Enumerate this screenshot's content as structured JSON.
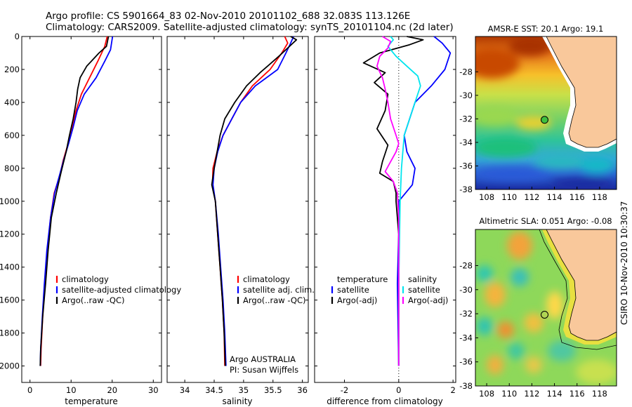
{
  "header": {
    "title_line1": "Argo profile: CS 5901664_83 02-Nov-2010 20101102_688 32.083S 113.126E",
    "title_line2": "Climatology: CARS2009. Satellite-adjusted climatology: synTS_20101104.nc (2d later)"
  },
  "side_label": "CSIRO 10-Nov-2010 10:30:37",
  "colors": {
    "red": "#ff0000",
    "blue": "#0000ff",
    "black": "#000000",
    "cyan": "#00e5ee",
    "magenta": "#ff00ff",
    "land": "#f9c89b"
  },
  "chart_data": [
    {
      "type": "line",
      "id": "temperature",
      "xlabel": "temperature",
      "xlim": [
        -2,
        32
      ],
      "ylim": [
        0,
        2100
      ],
      "y_reversed": true,
      "xticks": [
        "0",
        "10",
        "20",
        "30"
      ],
      "xtick_values": [
        0,
        10,
        20,
        30
      ],
      "yticks": [
        "0",
        "200",
        "400",
        "600",
        "800",
        "1000",
        "1200",
        "1400",
        "1600",
        "1800",
        "2000"
      ],
      "ytick_values": [
        0,
        200,
        400,
        600,
        800,
        1000,
        1200,
        1400,
        1600,
        1800,
        2000
      ],
      "series": [
        {
          "name": "climatology",
          "color": "#ff0000",
          "points": [
            [
              18.8,
              0
            ],
            [
              18.2,
              60
            ],
            [
              16.5,
              150
            ],
            [
              14.5,
              250
            ],
            [
              12.5,
              350
            ],
            [
              11.2,
              450
            ],
            [
              10.3,
              550
            ],
            [
              9.3,
              650
            ],
            [
              8.1,
              750
            ],
            [
              7.2,
              850
            ],
            [
              5.9,
              950
            ],
            [
              5.0,
              1100
            ],
            [
              4.2,
              1300
            ],
            [
              3.6,
              1500
            ],
            [
              3.1,
              1700
            ],
            [
              2.7,
              1900
            ],
            [
              2.6,
              2000
            ]
          ]
        },
        {
          "name": "satellite-adjusted climatology",
          "color": "#0000ff",
          "points": [
            [
              20.1,
              0
            ],
            [
              19.6,
              80
            ],
            [
              18.2,
              150
            ],
            [
              16.1,
              250
            ],
            [
              13.2,
              350
            ],
            [
              11.5,
              450
            ],
            [
              10.5,
              550
            ],
            [
              9.4,
              650
            ],
            [
              8.2,
              750
            ],
            [
              7.1,
              850
            ],
            [
              6.0,
              950
            ],
            [
              5.0,
              1100
            ],
            [
              4.1,
              1300
            ],
            [
              3.5,
              1500
            ],
            [
              3.0,
              1700
            ],
            [
              2.6,
              1900
            ],
            [
              2.5,
              2000
            ]
          ]
        },
        {
          "name": "Argo(..raw -QC)",
          "color": "#000000",
          "points": [
            [
              19.1,
              0
            ],
            [
              18.6,
              60
            ],
            [
              16.8,
              100
            ],
            [
              13.8,
              180
            ],
            [
              12.2,
              250
            ],
            [
              11.6,
              320
            ],
            [
              11.2,
              400
            ],
            [
              10.5,
              500
            ],
            [
              9.6,
              600
            ],
            [
              8.8,
              700
            ],
            [
              7.6,
              820
            ],
            [
              6.4,
              950
            ],
            [
              5.2,
              1100
            ],
            [
              4.4,
              1300
            ],
            [
              3.8,
              1500
            ],
            [
              3.1,
              1700
            ],
            [
              2.6,
              1900
            ],
            [
              2.5,
              2000
            ]
          ]
        }
      ],
      "legend": [
        {
          "label": "climatology",
          "color": "#ff0000"
        },
        {
          "label": "satellite-adjusted climatology",
          "color": "#0000ff"
        },
        {
          "label": "Argo(..raw -QC)",
          "color": "#000000"
        }
      ]
    },
    {
      "type": "line",
      "id": "salinity",
      "xlabel": "salinity",
      "xlim": [
        33.7,
        36.1
      ],
      "ylim": [
        0,
        2100
      ],
      "y_reversed": true,
      "xticks": [
        "34",
        "34.5",
        "35",
        "35.5",
        "36"
      ],
      "xtick_values": [
        34,
        34.5,
        35,
        35.5,
        36
      ],
      "series": [
        {
          "name": "climatology",
          "color": "#ff0000",
          "points": [
            [
              35.7,
              0
            ],
            [
              35.75,
              40
            ],
            [
              35.65,
              100
            ],
            [
              35.45,
              200
            ],
            [
              35.15,
              300
            ],
            [
              34.95,
              400
            ],
            [
              34.8,
              500
            ],
            [
              34.65,
              600
            ],
            [
              34.55,
              700
            ],
            [
              34.48,
              800
            ],
            [
              34.47,
              900
            ],
            [
              34.52,
              1000
            ],
            [
              34.56,
              1200
            ],
            [
              34.6,
              1400
            ],
            [
              34.64,
              1600
            ],
            [
              34.67,
              1800
            ],
            [
              34.68,
              2000
            ]
          ]
        },
        {
          "name": "satellite adj. clim.",
          "color": "#0000ff",
          "points": [
            [
              35.85,
              0
            ],
            [
              35.8,
              40
            ],
            [
              35.72,
              100
            ],
            [
              35.58,
              200
            ],
            [
              35.2,
              300
            ],
            [
              34.95,
              400
            ],
            [
              34.8,
              500
            ],
            [
              34.65,
              600
            ],
            [
              34.56,
              700
            ],
            [
              34.5,
              800
            ],
            [
              34.48,
              900
            ],
            [
              34.52,
              1000
            ],
            [
              34.57,
              1200
            ],
            [
              34.61,
              1400
            ],
            [
              34.65,
              1600
            ],
            [
              34.68,
              1800
            ],
            [
              34.7,
              2000
            ]
          ]
        },
        {
          "name": "Argo(..raw -QC)",
          "color": "#000000",
          "points": [
            [
              35.8,
              0
            ],
            [
              35.9,
              20
            ],
            [
              35.78,
              60
            ],
            [
              35.6,
              120
            ],
            [
              35.28,
              220
            ],
            [
              35.05,
              300
            ],
            [
              34.85,
              400
            ],
            [
              34.68,
              500
            ],
            [
              34.6,
              600
            ],
            [
              34.55,
              700
            ],
            [
              34.5,
              800
            ],
            [
              34.46,
              900
            ],
            [
              34.52,
              1000
            ],
            [
              34.56,
              1200
            ],
            [
              34.6,
              1400
            ],
            [
              34.64,
              1600
            ],
            [
              34.67,
              1800
            ],
            [
              34.69,
              2000
            ]
          ]
        }
      ],
      "legend": [
        {
          "label": "climatology",
          "color": "#ff0000"
        },
        {
          "label": "satellite adj. clim.",
          "color": "#0000ff"
        },
        {
          "label": "Argo(..raw -QC)",
          "color": "#000000"
        }
      ],
      "annotation": [
        "Argo AUSTRALIA",
        "PI: Susan Wijffels"
      ]
    },
    {
      "type": "line",
      "id": "difference",
      "xlabel": "difference from climatology",
      "xlim": [
        -3.1,
        2.1
      ],
      "ylim": [
        0,
        2100
      ],
      "y_reversed": true,
      "xticks": [
        "-2",
        "0",
        "2"
      ],
      "xtick_values": [
        -2,
        0,
        2
      ],
      "zero_line": 0,
      "series": [
        {
          "name": "temperature satellite",
          "color": "#0000ff",
          "points": [
            [
              1.3,
              0
            ],
            [
              1.6,
              40
            ],
            [
              1.9,
              100
            ],
            [
              1.7,
              200
            ],
            [
              1.2,
              300
            ],
            [
              0.6,
              400
            ],
            [
              0.4,
              500
            ],
            [
              0.2,
              600
            ],
            [
              0.3,
              700
            ],
            [
              0.6,
              800
            ],
            [
              0.5,
              900
            ],
            [
              0.0,
              1000
            ],
            [
              0.0,
              1200
            ],
            [
              -0.05,
              1500
            ],
            [
              0.0,
              2000
            ]
          ]
        },
        {
          "name": "temperature Argo(-adj)",
          "color": "#000000",
          "points": [
            [
              0.3,
              0
            ],
            [
              0.9,
              20
            ],
            [
              0.4,
              50
            ],
            [
              -0.7,
              100
            ],
            [
              -1.3,
              160
            ],
            [
              -0.5,
              220
            ],
            [
              -0.9,
              280
            ],
            [
              -0.4,
              350
            ],
            [
              -0.5,
              450
            ],
            [
              -0.8,
              560
            ],
            [
              -0.4,
              660
            ],
            [
              -0.6,
              760
            ],
            [
              -0.7,
              830
            ],
            [
              -0.2,
              880
            ],
            [
              -0.1,
              950
            ],
            [
              -0.1,
              1000
            ],
            [
              0.0,
              1200
            ],
            [
              0.0,
              2000
            ]
          ]
        },
        {
          "name": "salinity satellite",
          "color": "#00e5ee",
          "points": [
            [
              -0.3,
              0
            ],
            [
              -0.2,
              20
            ],
            [
              -0.4,
              60
            ],
            [
              -0.1,
              120
            ],
            [
              0.3,
              180
            ],
            [
              0.7,
              240
            ],
            [
              0.8,
              300
            ],
            [
              0.6,
              400
            ],
            [
              0.4,
              500
            ],
            [
              0.2,
              600
            ],
            [
              0.1,
              800
            ],
            [
              0.05,
              1000
            ],
            [
              0.0,
              1500
            ],
            [
              0.0,
              2000
            ]
          ]
        },
        {
          "name": "salinity Argo(-adj)",
          "color": "#ff00ff",
          "points": [
            [
              -0.6,
              0
            ],
            [
              -0.3,
              30
            ],
            [
              -0.4,
              70
            ],
            [
              -0.7,
              120
            ],
            [
              -0.8,
              180
            ],
            [
              -0.6,
              250
            ],
            [
              -0.5,
              320
            ],
            [
              -0.4,
              400
            ],
            [
              -0.3,
              500
            ],
            [
              -0.1,
              600
            ],
            [
              0.0,
              650
            ],
            [
              -0.1,
              700
            ],
            [
              -0.3,
              760
            ],
            [
              -0.5,
              820
            ],
            [
              -0.2,
              880
            ],
            [
              -0.05,
              950
            ],
            [
              0.0,
              1100
            ],
            [
              0.0,
              2000
            ]
          ]
        }
      ],
      "legend_left": [
        {
          "label": "temperature",
          "color": ""
        },
        {
          "label": "satellite",
          "color": "#0000ff"
        },
        {
          "label": "Argo(-adj)",
          "color": "#000000"
        }
      ],
      "legend_right": [
        {
          "label": "salinity",
          "color": ""
        },
        {
          "label": "satellite",
          "color": "#00e5ee"
        },
        {
          "label": "Argo(-adj)",
          "color": "#ff00ff"
        }
      ]
    },
    {
      "type": "heatmap",
      "id": "sst-map",
      "title": "AMSR-E SST: 20.1  Argo: 19.1",
      "xlim": [
        107,
        119.5
      ],
      "ylim": [
        -38,
        -25
      ],
      "xticks": [
        "108",
        "110",
        "112",
        "114",
        "116",
        "118"
      ],
      "xtick_values": [
        108,
        110,
        112,
        114,
        116,
        118
      ],
      "yticks": [
        "-28",
        "-30",
        "-32",
        "-34",
        "-36",
        "-38"
      ],
      "ytick_values": [
        -28,
        -30,
        -32,
        -34,
        -36,
        -38
      ],
      "marker": {
        "lon": 113.126,
        "lat": -32.083
      }
    },
    {
      "type": "heatmap",
      "id": "sla-map",
      "title": "Altimetric SLA: 0.051  Argo: -0.08",
      "xlim": [
        107,
        119.5
      ],
      "ylim": [
        -38,
        -25
      ],
      "xticks": [
        "108",
        "110",
        "112",
        "114",
        "116",
        "118"
      ],
      "xtick_values": [
        108,
        110,
        112,
        114,
        116,
        118
      ],
      "yticks": [
        "-28",
        "-30",
        "-32",
        "-34",
        "-36",
        "-38"
      ],
      "ytick_values": [
        -28,
        -30,
        -32,
        -34,
        -36,
        -38
      ],
      "marker": {
        "lon": 113.126,
        "lat": -32.083
      }
    }
  ]
}
